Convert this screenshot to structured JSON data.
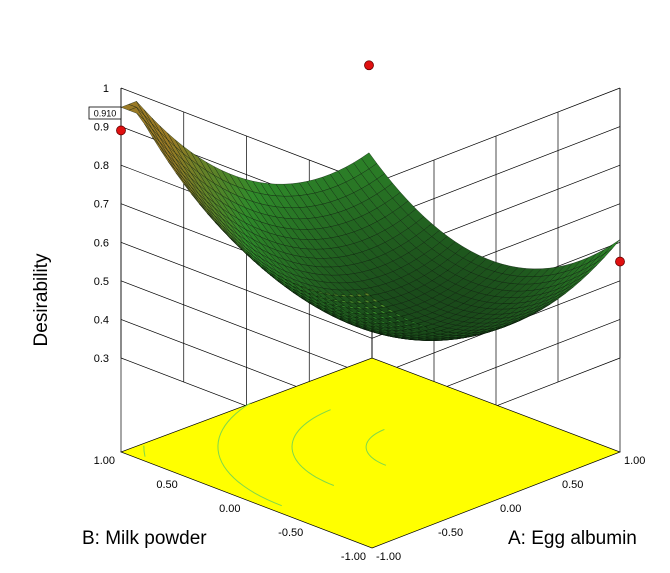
{
  "chart_data": {
    "type": "3d-surface",
    "title": "",
    "zlabel": "Desirability",
    "xlabel": "A: Egg albumin",
    "ylabel": "B: Milk powder",
    "max_value_label": "0.910",
    "z_ticks": [
      "0.3",
      "0.4",
      "0.5",
      "0.6",
      "0.7",
      "0.8",
      "0.9",
      "1"
    ],
    "zlim": [
      0.3,
      1.0
    ],
    "x_ticks": [
      "-1.00",
      "-0.50",
      "0.00",
      "0.50",
      "1.00"
    ],
    "y_ticks": [
      "-1.00",
      "-0.50",
      "0.00",
      "0.50",
      "1.00"
    ],
    "xlim": [
      -1,
      1
    ],
    "ylim": [
      -1,
      1
    ],
    "corner_points": [
      {
        "A": -1,
        "B": 1,
        "desirability": 0.89
      },
      {
        "A": 1,
        "B": 1,
        "desirability": 0.81
      },
      {
        "A": 1,
        "B": -1,
        "desirability": 0.55
      }
    ],
    "surface_min": {
      "A": 0.3,
      "B": -0.2,
      "desirability": 0.38
    },
    "colors": {
      "surface_high": "#9a7a26",
      "surface_mid": "#2f8a2a",
      "surface_low": "#1a4a1a",
      "contour_fill": "#ffff00",
      "contour_lines": "#7fd84a",
      "marker": "#e01010"
    }
  }
}
